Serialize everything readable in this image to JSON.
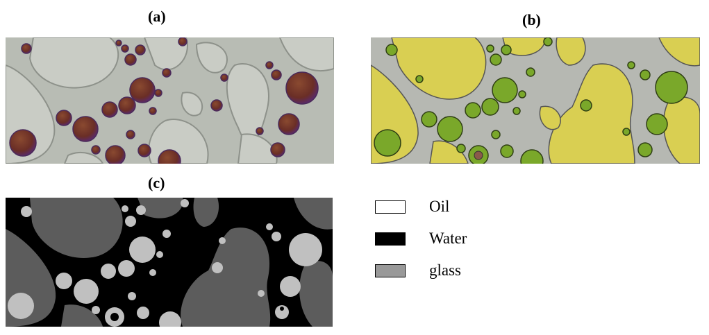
{
  "panels": [
    {
      "label": "(a)"
    },
    {
      "label": "(b)"
    },
    {
      "label": "(c)"
    }
  ],
  "legend": [
    {
      "label": "Oil",
      "fill": "#ffffff",
      "border": "#000000"
    },
    {
      "label": "Water",
      "fill": "#000000",
      "border": "#000000"
    },
    {
      "label": "glass",
      "fill": "#999999",
      "border": "#000000"
    }
  ]
}
